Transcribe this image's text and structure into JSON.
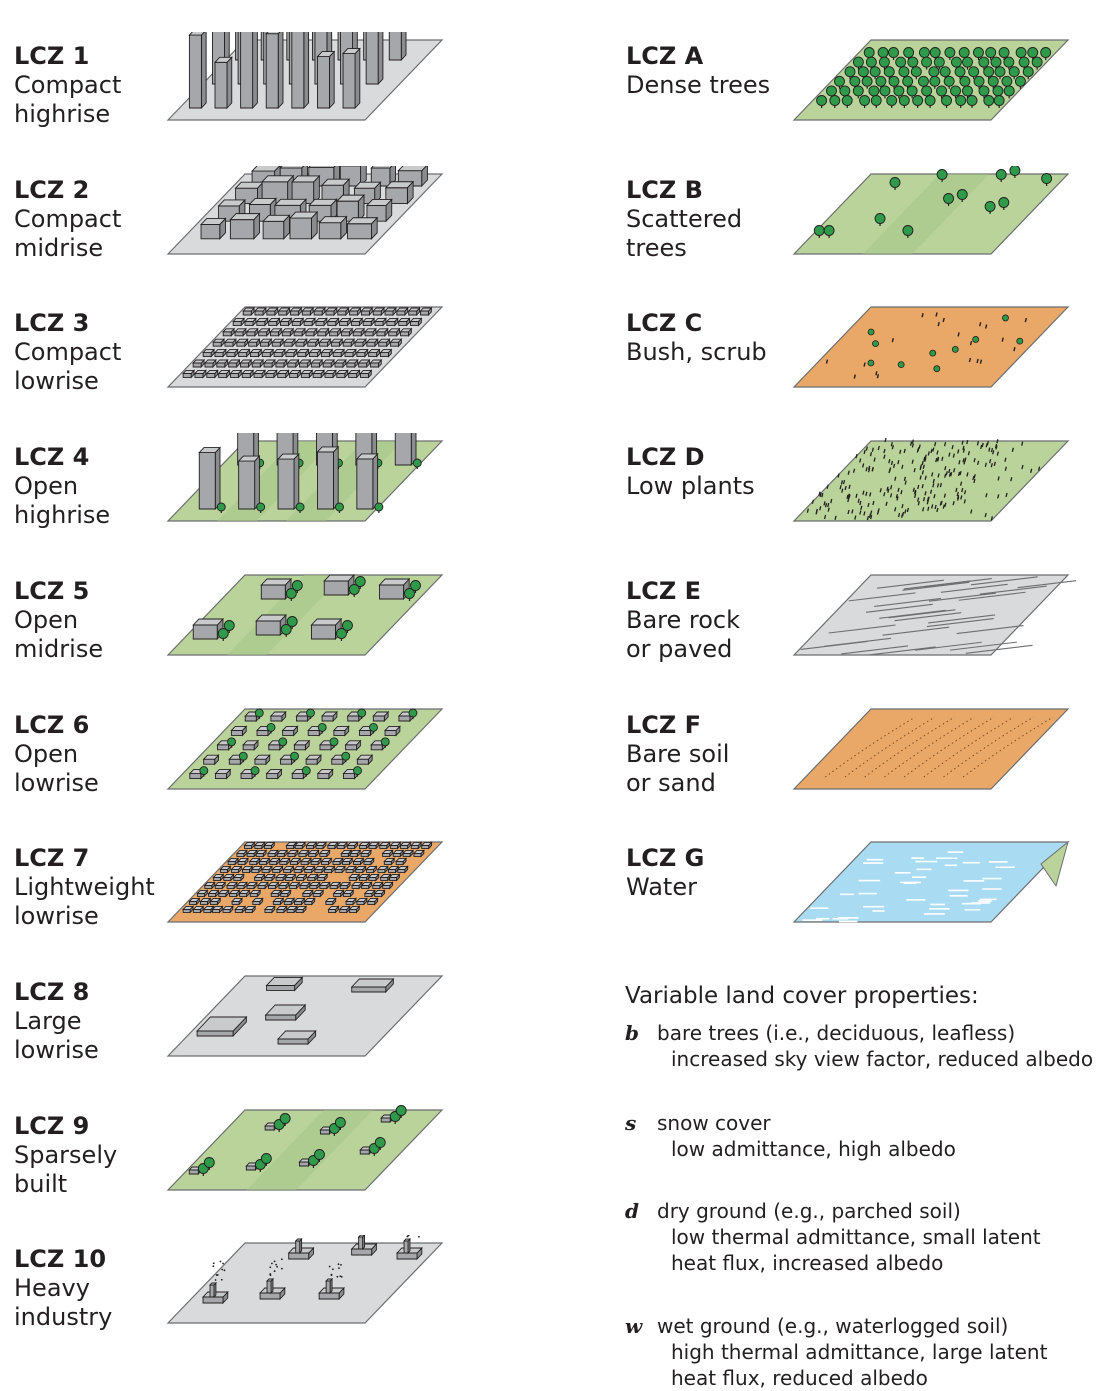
{
  "left_zones": [
    {
      "code": "LCZ 1",
      "lines": [
        "Compact",
        "highrise"
      ],
      "icon": "compact-highrise-icon"
    },
    {
      "code": "LCZ 2",
      "lines": [
        "Compact",
        "midrise"
      ],
      "icon": "compact-midrise-icon"
    },
    {
      "code": "LCZ 3",
      "lines": [
        "Compact",
        "lowrise"
      ],
      "icon": "compact-lowrise-icon"
    },
    {
      "code": "LCZ 4",
      "lines": [
        "Open",
        "highrise"
      ],
      "icon": "open-highrise-icon"
    },
    {
      "code": "LCZ 5",
      "lines": [
        "Open",
        "midrise"
      ],
      "icon": "open-midrise-icon"
    },
    {
      "code": "LCZ 6",
      "lines": [
        "Open",
        "lowrise"
      ],
      "icon": "open-lowrise-icon"
    },
    {
      "code": "LCZ 7",
      "lines": [
        "Lightweight",
        "lowrise"
      ],
      "icon": "lightweight-lowrise-icon"
    },
    {
      "code": "LCZ 8",
      "lines": [
        "Large",
        "lowrise"
      ],
      "icon": "large-lowrise-icon"
    },
    {
      "code": "LCZ 9",
      "lines": [
        "Sparsely",
        "built"
      ],
      "icon": "sparsely-built-icon"
    },
    {
      "code": "LCZ 10",
      "lines": [
        "Heavy",
        "industry"
      ],
      "icon": "heavy-industry-icon"
    }
  ],
  "right_zones": [
    {
      "code": "LCZ A",
      "lines": [
        "Dense trees"
      ],
      "icon": "dense-trees-icon"
    },
    {
      "code": "LCZ B",
      "lines": [
        "Scattered",
        "trees"
      ],
      "icon": "scattered-trees-icon"
    },
    {
      "code": "LCZ C",
      "lines": [
        "Bush, scrub"
      ],
      "icon": "bush-scrub-icon"
    },
    {
      "code": "LCZ D",
      "lines": [
        "Low plants"
      ],
      "icon": "low-plants-icon"
    },
    {
      "code": "LCZ E",
      "lines": [
        "Bare rock",
        "or paved"
      ],
      "icon": "bare-rock-icon"
    },
    {
      "code": "LCZ F",
      "lines": [
        "Bare soil",
        "or sand"
      ],
      "icon": "bare-soil-icon"
    },
    {
      "code": "LCZ G",
      "lines": [
        "Water"
      ],
      "icon": "water-icon"
    }
  ],
  "legend": {
    "title": "Variable land cover properties:",
    "properties": [
      {
        "letter": "b",
        "lines": [
          "bare trees (i.e., deciduous, leafless)",
          "increased sky view factor, reduced albedo"
        ]
      },
      {
        "letter": "s",
        "lines": [
          "snow cover",
          "low admittance, high albedo"
        ]
      },
      {
        "letter": "d",
        "lines": [
          "dry ground (e.g., parched soil)",
          "low thermal admittance, small latent",
          "heat flux, increased albedo"
        ]
      },
      {
        "letter": "w",
        "lines": [
          "wet ground (e.g., waterlogged soil)",
          "high thermal admittance, large latent",
          "heat flux, reduced albedo"
        ]
      }
    ]
  },
  "colors": {
    "paved": "#d9dadb",
    "grass": "#b9d39a",
    "grass_dark": "#a5c786",
    "soil": "#e9a868",
    "water": "#a9dcf3",
    "building": "#a5a7aa",
    "tree": "#2f9a4a",
    "outline": "#231f20"
  }
}
